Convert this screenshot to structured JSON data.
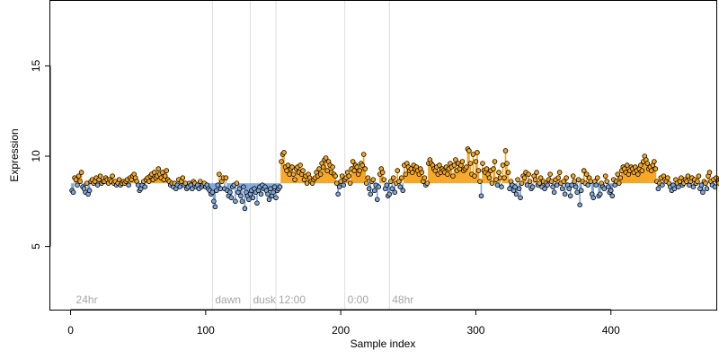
{
  "chart_data": {
    "type": "scatter",
    "title": "",
    "xlabel": "Sample index",
    "ylabel": "Expression",
    "xlim": [
      -15,
      478
    ],
    "ylim": [
      1.5,
      18.6
    ],
    "x_ticks": [
      0,
      100,
      200,
      300,
      400
    ],
    "y_ticks": [
      5,
      10,
      15
    ],
    "grid": false,
    "legend": "none",
    "baseline": 8.5,
    "colors": {
      "above": "#f5a623",
      "below": "#7fa7d9",
      "vline": "#dcdcdc",
      "point_stroke": "#000000",
      "axis": "#000000",
      "annotation_text": "#a6a6a6"
    },
    "annotations": [
      {
        "label": "24hr",
        "x": 2
      },
      {
        "label": "dawn",
        "x": 105
      },
      {
        "label": "dusk",
        "x": 133
      },
      {
        "label": "12:00",
        "x": 152
      },
      {
        "label": "0:00",
        "x": 203
      },
      {
        "label": "48hr",
        "x": 236
      }
    ],
    "vlines": [
      105,
      133,
      152,
      203,
      236
    ],
    "series": [
      {
        "values": [
          8.1,
          8.0,
          8.8,
          8.7,
          8.4,
          8.9,
          8.6,
          9.1,
          8.3,
          8.2,
          8.0,
          8.5,
          7.9,
          8.1,
          8.6,
          8.7,
          8.5,
          8.6,
          8.8,
          8.4,
          8.7,
          8.9,
          8.5,
          8.6,
          8.6,
          8.8,
          8.7,
          8.5,
          8.7,
          8.6,
          8.9,
          8.5,
          8.6,
          8.4,
          8.5,
          8.7,
          8.4,
          8.5,
          8.6,
          8.5,
          8.6,
          8.7,
          8.4,
          8.8,
          8.7,
          8.9,
          9.0,
          8.8,
          8.6,
          8.4,
          8.1,
          8.2,
          8.4,
          8.6,
          8.3,
          8.7,
          8.8,
          8.6,
          8.9,
          9.0,
          8.7,
          9.1,
          8.8,
          8.9,
          9.3,
          9.0,
          8.8,
          9.1,
          8.7,
          8.9,
          9.2,
          8.7,
          8.6,
          8.4,
          8.5,
          8.3,
          8.5,
          8.2,
          8.4,
          8.7,
          8.3,
          8.6,
          8.8,
          8.4,
          8.5,
          8.2,
          8.3,
          8.5,
          8.4,
          8.2,
          8.6,
          8.5,
          8.3,
          8.4,
          8.2,
          8.6,
          8.3,
          8.4,
          8.5,
          8.3,
          8.4,
          8.2,
          8.1,
          7.9,
          8.0,
          7.5,
          7.2,
          8.1,
          8.4,
          9.0,
          8.2,
          8.6,
          8.8,
          8.2,
          8.8,
          8.1,
          7.8,
          8.0,
          7.7,
          8.3,
          8.4,
          7.5,
          8.5,
          8.0,
          8.2,
          7.8,
          7.5,
          8.3,
          7.1,
          8.0,
          7.8,
          7.6,
          7.9,
          8.1,
          7.7,
          8.2,
          8.0,
          7.4,
          8.1,
          8.3,
          7.9,
          8.4,
          8.2,
          8.3,
          8.1,
          7.9,
          7.6,
          8.2,
          7.8,
          8.0,
          8.3,
          7.7,
          8.1,
          8.2,
          8.3,
          9.7,
          10.1,
          10.2,
          9.4,
          9.2,
          9.5,
          9.0,
          9.3,
          9.4,
          9.0,
          8.7,
          9.3,
          9.4,
          9.1,
          9.5,
          9.0,
          9.2,
          8.7,
          8.9,
          8.5,
          9.0,
          8.8,
          8.6,
          8.5,
          8.7,
          8.8,
          9.1,
          8.9,
          9.3,
          9.0,
          9.6,
          9.4,
          9.8,
          9.9,
          9.2,
          9.7,
          9.5,
          9.1,
          9.4,
          9.0,
          8.9,
          8.5,
          7.9,
          8.3,
          8.6,
          8.9,
          8.4,
          8.7,
          8.8,
          9.1,
          8.9,
          8.5,
          9.3,
          9.7,
          9.2,
          9.5,
          9.4,
          9.0,
          9.2,
          9.6,
          9.5,
          10.1,
          9.3,
          8.5,
          8.8,
          8.2,
          7.9,
          8.6,
          8.7,
          8.1,
          8.4,
          7.6,
          8.3,
          9.0,
          9.3,
          9.1,
          8.7,
          8.2,
          8.4,
          7.8,
          7.9,
          8.6,
          8.2,
          8.8,
          8.0,
          8.5,
          9.2,
          8.6,
          8.3,
          8.8,
          8.1,
          9.5,
          9.0,
          9.6,
          9.4,
          9.2,
          9.3,
          9.1,
          9.5,
          9.3,
          9.4,
          9.2,
          9.0,
          9.3,
          9.1,
          8.6,
          8.8,
          8.4,
          8.5,
          9.6,
          9.8,
          9.6,
          9.5,
          9.3,
          9.2,
          9.4,
          9.0,
          9.5,
          9.1,
          9.3,
          9.2,
          9.1,
          9.4,
          9.0,
          9.3,
          9.6,
          9.4,
          8.9,
          9.5,
          9.8,
          9.2,
          9.6,
          9.3,
          9.5,
          9.7,
          9.2,
          9.3,
          9.4,
          10.4,
          10.3,
          9.6,
          9.0,
          10.1,
          8.9,
          9.7,
          10.2,
          9.2,
          8.6,
          7.8,
          9.6,
          9.2,
          9.1,
          9.3,
          9.0,
          8.8,
          9.2,
          8.5,
          9.3,
          9.7,
          8.7,
          8.4,
          9.1,
          8.8,
          8.3,
          9.5,
          8.8,
          10.3,
          9.6,
          9.1,
          8.2,
          8.6,
          8.4,
          8.1,
          8.3,
          7.9,
          8.7,
          8.2,
          7.7,
          8.5,
          8.9,
          8.8,
          9.1,
          8.4,
          9.0,
          8.6,
          8.2,
          8.3,
          8.9,
          8.7,
          9.1,
          8.4,
          8.5,
          8.8,
          8.3,
          8.6,
          8.2,
          8.5,
          8.4,
          8.7,
          9.0,
          8.6,
          8.3,
          8.0,
          8.7,
          8.4,
          8.8,
          9.1,
          8.5,
          8.2,
          8.6,
          7.9,
          8.8,
          8.4,
          8.2,
          7.8,
          8.4,
          8.9,
          8.6,
          8.3,
          8.0,
          8.7,
          7.3,
          8.1,
          8.6,
          9.2,
          8.5,
          9.0,
          8.4,
          8.8,
          8.6,
          7.9,
          7.7,
          8.6,
          8.4,
          8.8,
          7.8,
          7.9,
          8.5,
          8.3,
          8.2,
          8.9,
          8.6,
          8.3,
          8.0,
          8.1,
          7.8,
          8.7,
          8.4,
          8.6,
          9.0,
          8.5,
          8.8,
          9.2,
          9.4,
          9.3,
          9.1,
          9.5,
          9.0,
          9.2,
          9.4,
          9.3,
          9.1,
          9.4,
          9.2,
          9.0,
          9.3,
          9.5,
          9.2,
          9.7,
          10.0,
          9.8,
          9.6,
          9.3,
          9.4,
          9.2,
          9.5,
          9.7,
          9.3,
          8.6,
          8.2,
          8.5,
          8.8,
          8.4,
          8.9,
          8.7,
          8.6,
          8.8,
          8.5,
          8.3,
          8.1,
          8.4,
          8.2,
          8.7,
          8.5,
          8.3,
          8.6,
          8.8,
          8.4,
          8.5,
          8.7,
          8.6,
          8.9,
          8.4,
          8.6,
          8.8,
          8.3,
          8.7,
          8.5,
          8.6,
          8.9,
          8.2,
          8.4,
          8.0,
          8.6,
          8.5,
          8.2,
          8.9,
          9.1,
          8.6,
          8.4,
          8.7,
          8.3,
          8.8,
          8.6,
          8.5,
          8.7
        ]
      }
    ]
  }
}
